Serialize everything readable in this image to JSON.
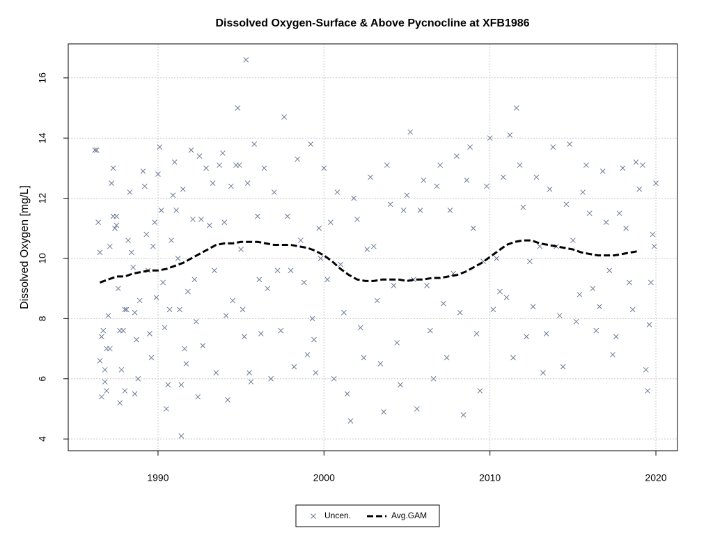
{
  "chart_data": {
    "type": "scatter",
    "title": "Dissolved Oxygen-Surface & Above Pycnocline at XFB1986",
    "y_label": "Dissolved Oxygen [mg/L]",
    "xlim": [
      1984.59,
      2021.3
    ],
    "ylim": [
      3.61,
      17.13
    ],
    "xticks": [
      1990,
      2000,
      2010,
      2020
    ],
    "yticks": [
      4,
      6,
      8,
      10,
      12,
      14,
      16
    ],
    "grid": true,
    "legend": "bottom",
    "series": [
      {
        "name": "Uncen.",
        "color": "#6b7a95",
        "mode": "markers",
        "x": [
          1986.2,
          1986.3,
          1986.4,
          1986.5,
          1986.5,
          1986.6,
          1986.6,
          1986.7,
          1986.8,
          1986.8,
          1986.9,
          1986.9,
          1987.0,
          1987.1,
          1987.1,
          1987.2,
          1987.3,
          1987.3,
          1987.4,
          1987.5,
          1987.5,
          1987.6,
          1987.7,
          1987.7,
          1987.8,
          1987.9,
          1988.0,
          1988.0,
          1988.1,
          1988.2,
          1988.3,
          1988.4,
          1988.5,
          1988.6,
          1988.6,
          1988.7,
          1988.8,
          1988.9,
          1989.1,
          1989.2,
          1989.3,
          1989.4,
          1989.5,
          1989.6,
          1989.7,
          1989.8,
          1989.9,
          1990.0,
          1990.1,
          1990.2,
          1990.3,
          1990.4,
          1990.5,
          1990.6,
          1990.7,
          1990.8,
          1990.9,
          1991.0,
          1991.1,
          1991.2,
          1991.3,
          1991.4,
          1991.4,
          1991.5,
          1991.6,
          1991.7,
          1991.8,
          1992.0,
          1992.1,
          1992.2,
          1992.3,
          1992.4,
          1992.5,
          1992.6,
          1992.7,
          1992.9,
          1993.1,
          1993.3,
          1993.4,
          1993.5,
          1993.7,
          1993.9,
          1994.0,
          1994.1,
          1994.2,
          1994.4,
          1994.5,
          1994.7,
          1994.8,
          1994.9,
          1995.0,
          1995.1,
          1995.2,
          1995.3,
          1995.4,
          1995.5,
          1995.6,
          1995.8,
          1996.0,
          1996.1,
          1996.2,
          1996.4,
          1996.6,
          1996.8,
          1997.0,
          1997.2,
          1997.4,
          1997.6,
          1997.8,
          1998.0,
          1998.2,
          1998.4,
          1998.6,
          1998.8,
          1999.0,
          1999.2,
          1999.3,
          1999.4,
          1999.5,
          1999.7,
          1999.8,
          2000.0,
          2000.2,
          2000.4,
          2000.6,
          2000.8,
          2001.0,
          2001.2,
          2001.4,
          2001.6,
          2001.8,
          2002.0,
          2002.2,
          2002.4,
          2002.6,
          2002.8,
          2003.0,
          2003.2,
          2003.4,
          2003.6,
          2003.8,
          2004.0,
          2004.2,
          2004.4,
          2004.6,
          2004.8,
          2005.0,
          2005.2,
          2005.4,
          2005.6,
          2005.8,
          2006.0,
          2006.2,
          2006.4,
          2006.6,
          2006.8,
          2007.0,
          2007.2,
          2007.4,
          2007.6,
          2007.8,
          2008.0,
          2008.2,
          2008.4,
          2008.6,
          2008.8,
          2009.0,
          2009.2,
          2009.4,
          2009.6,
          2009.8,
          2010.0,
          2010.2,
          2010.4,
          2010.6,
          2010.8,
          2011.0,
          2011.2,
          2011.4,
          2011.6,
          2011.8,
          2012.0,
          2012.2,
          2012.4,
          2012.6,
          2012.8,
          2013.0,
          2013.2,
          2013.4,
          2013.6,
          2013.8,
          2014.0,
          2014.2,
          2014.4,
          2014.6,
          2014.8,
          2015.0,
          2015.2,
          2015.4,
          2015.6,
          2015.8,
          2016.0,
          2016.2,
          2016.4,
          2016.6,
          2016.8,
          2017.0,
          2017.2,
          2017.4,
          2017.6,
          2017.8,
          2018.0,
          2018.2,
          2018.4,
          2018.6,
          2018.8,
          2019.0,
          2019.2,
          2019.4,
          2019.5,
          2019.6,
          2019.7,
          2019.8,
          2019.9,
          2020.0
        ],
        "y": [
          13.6,
          13.6,
          11.2,
          10.2,
          6.6,
          7.4,
          5.4,
          7.6,
          5.9,
          6.3,
          5.6,
          7.0,
          8.1,
          10.4,
          7.0,
          12.5,
          13.0,
          11.4,
          11.0,
          11.4,
          11.1,
          9.0,
          7.6,
          5.2,
          6.3,
          7.6,
          8.3,
          5.6,
          8.3,
          10.6,
          12.2,
          10.2,
          9.7,
          8.2,
          5.5,
          7.3,
          6.0,
          8.6,
          12.9,
          12.4,
          10.8,
          9.6,
          7.5,
          6.7,
          10.4,
          11.2,
          8.7,
          12.8,
          13.7,
          11.6,
          9.2,
          7.7,
          5.0,
          5.8,
          8.3,
          10.6,
          12.1,
          13.2,
          11.6,
          10.0,
          8.3,
          5.8,
          4.1,
          12.3,
          7.0,
          6.5,
          8.9,
          13.6,
          11.3,
          9.3,
          7.9,
          5.4,
          13.4,
          11.3,
          7.1,
          13.0,
          11.1,
          12.5,
          9.6,
          6.2,
          13.1,
          13.5,
          11.2,
          8.1,
          5.3,
          12.4,
          8.6,
          13.1,
          15.0,
          13.1,
          10.3,
          8.3,
          7.4,
          16.6,
          12.5,
          6.2,
          5.9,
          13.8,
          11.4,
          9.3,
          7.5,
          13.0,
          9.0,
          6.0,
          12.2,
          9.6,
          7.6,
          14.7,
          11.4,
          9.6,
          6.4,
          13.3,
          10.6,
          9.2,
          6.8,
          13.8,
          8.0,
          7.3,
          6.2,
          11.0,
          10.0,
          13.0,
          9.3,
          11.2,
          6.0,
          12.2,
          9.8,
          8.2,
          5.5,
          4.6,
          12.0,
          11.3,
          7.7,
          6.7,
          10.3,
          12.7,
          10.4,
          8.6,
          6.5,
          4.9,
          13.1,
          11.8,
          9.1,
          7.2,
          5.8,
          11.6,
          12.1,
          14.2,
          9.3,
          5.0,
          11.6,
          12.6,
          9.1,
          7.6,
          6.0,
          12.4,
          13.1,
          8.5,
          6.7,
          11.6,
          9.5,
          13.4,
          8.2,
          4.8,
          12.6,
          13.7,
          11.0,
          7.5,
          5.6,
          9.9,
          12.4,
          14.0,
          8.3,
          10.0,
          8.9,
          12.7,
          8.7,
          14.1,
          6.7,
          15.0,
          13.1,
          11.7,
          7.4,
          9.9,
          8.4,
          12.7,
          10.4,
          6.2,
          7.5,
          12.3,
          13.7,
          10.4,
          8.1,
          6.4,
          11.8,
          13.8,
          10.6,
          7.9,
          8.8,
          12.2,
          13.1,
          11.5,
          9.0,
          7.6,
          8.4,
          12.9,
          11.2,
          9.6,
          6.8,
          7.4,
          11.5,
          13.0,
          11.0,
          9.2,
          8.3,
          13.2,
          12.3,
          13.1,
          6.3,
          5.6,
          7.8,
          9.2,
          10.8,
          10.4,
          12.5
        ]
      },
      {
        "name": "Avg.GAM",
        "color": "#000000",
        "mode": "lines",
        "x": [
          1986.5,
          1987,
          1987.5,
          1988,
          1988.5,
          1989,
          1989.5,
          1990,
          1990.5,
          1991,
          1991.5,
          1992,
          1992.5,
          1993,
          1993.5,
          1994,
          1994.5,
          1995,
          1995.5,
          1996,
          1996.5,
          1997,
          1997.5,
          1998,
          1998.5,
          1999,
          1999.5,
          2000,
          2000.5,
          2001,
          2001.5,
          2002,
          2002.5,
          2003,
          2003.5,
          2004,
          2004.5,
          2005,
          2005.5,
          2006,
          2006.5,
          2007,
          2007.5,
          2008,
          2008.5,
          2009,
          2009.5,
          2010,
          2010.5,
          2011,
          2011.5,
          2012,
          2012.5,
          2013,
          2013.5,
          2014,
          2014.5,
          2015,
          2015.5,
          2016,
          2016.5,
          2017,
          2017.5,
          2018,
          2018.5,
          2019
        ],
        "y": [
          9.2,
          9.3,
          9.4,
          9.4,
          9.5,
          9.55,
          9.6,
          9.6,
          9.65,
          9.75,
          9.85,
          10.0,
          10.15,
          10.3,
          10.45,
          10.5,
          10.5,
          10.55,
          10.55,
          10.55,
          10.5,
          10.45,
          10.45,
          10.45,
          10.4,
          10.35,
          10.25,
          10.1,
          9.9,
          9.65,
          9.45,
          9.3,
          9.25,
          9.25,
          9.3,
          9.3,
          9.3,
          9.25,
          9.3,
          9.3,
          9.35,
          9.35,
          9.4,
          9.45,
          9.55,
          9.7,
          9.85,
          10.05,
          10.25,
          10.45,
          10.55,
          10.6,
          10.6,
          10.5,
          10.45,
          10.4,
          10.35,
          10.3,
          10.2,
          10.15,
          10.1,
          10.1,
          10.1,
          10.15,
          10.2,
          10.25
        ]
      }
    ]
  }
}
